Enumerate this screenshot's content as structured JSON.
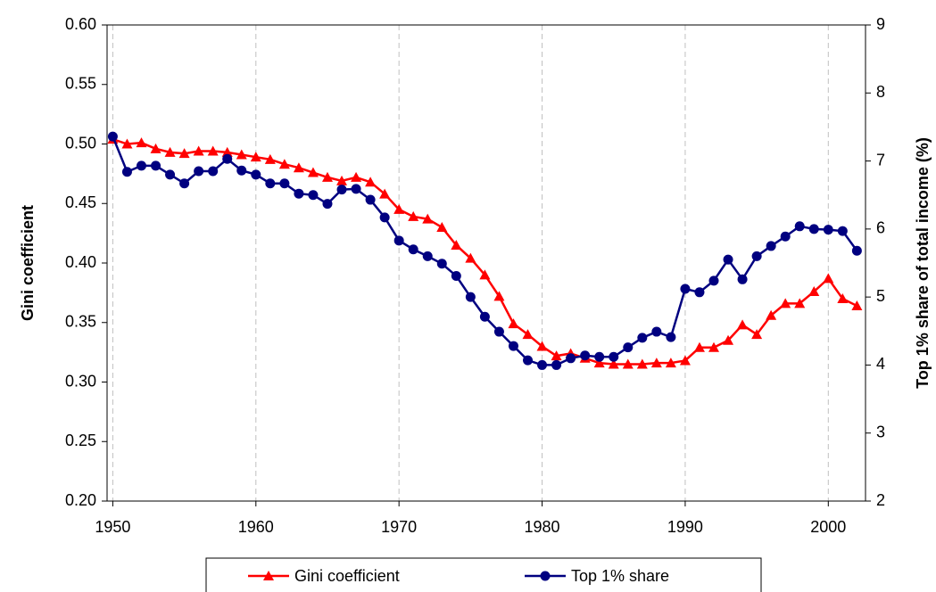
{
  "chart_data": {
    "type": "line",
    "x": [
      1950,
      1951,
      1952,
      1953,
      1954,
      1955,
      1956,
      1957,
      1958,
      1959,
      1960,
      1961,
      1962,
      1963,
      1964,
      1965,
      1966,
      1967,
      1968,
      1969,
      1970,
      1971,
      1972,
      1973,
      1974,
      1975,
      1976,
      1977,
      1978,
      1979,
      1980,
      1981,
      1982,
      1983,
      1984,
      1985,
      1986,
      1987,
      1988,
      1989,
      1990,
      1991,
      1992,
      1993,
      1994,
      1995,
      1996,
      1997,
      1998,
      1999,
      2000,
      2001,
      2002
    ],
    "series": [
      {
        "name": "Gini coefficient",
        "color": "#ff0000",
        "marker": "triangle",
        "values": [
          0.504,
          0.5,
          0.501,
          0.496,
          0.493,
          0.492,
          0.494,
          0.494,
          0.493,
          0.491,
          0.489,
          0.487,
          0.483,
          0.48,
          0.476,
          0.472,
          0.469,
          0.472,
          0.468,
          0.458,
          0.445,
          0.439,
          0.437,
          0.43,
          0.415,
          0.404,
          0.39,
          0.372,
          0.349,
          0.34,
          0.33,
          0.322,
          0.324,
          0.32,
          0.316,
          0.315,
          0.315,
          0.315,
          0.316,
          0.316,
          0.318,
          0.329,
          0.329,
          0.335,
          0.348,
          0.34,
          0.356,
          0.366,
          0.366,
          0.376,
          0.387,
          0.37,
          0.364
        ]
      },
      {
        "name": "Top 1% share",
        "color": "#000080",
        "marker": "circle",
        "axis": "y2",
        "values": [
          7.36,
          6.84,
          6.93,
          6.93,
          6.8,
          6.67,
          6.85,
          6.85,
          7.03,
          6.86,
          6.8,
          6.67,
          6.67,
          6.52,
          6.5,
          6.37,
          6.58,
          6.59,
          6.43,
          6.17,
          5.83,
          5.7,
          5.6,
          5.49,
          5.31,
          5.0,
          4.71,
          4.49,
          4.28,
          4.07,
          4.0,
          4.0,
          4.1,
          4.14,
          4.12,
          4.12,
          4.26,
          4.4,
          4.49,
          4.41,
          5.12,
          5.07,
          5.24,
          5.55,
          5.26,
          5.6,
          5.75,
          5.89,
          6.04,
          6.0,
          5.99,
          5.97,
          5.68
        ]
      }
    ],
    "y_label": "Gini coefficient",
    "y2_label": "Top 1% share of total income (%)",
    "xlim": [
      1949.6,
      2002.6
    ],
    "xticks": [
      1950,
      1960,
      1970,
      1980,
      1990,
      2000
    ],
    "ylim": [
      0.2,
      0.6
    ],
    "yticks": [
      {
        "value": 0.2,
        "label": "0.20"
      },
      {
        "value": 0.25,
        "label": "0.25"
      },
      {
        "value": 0.3,
        "label": "0.30"
      },
      {
        "value": 0.35,
        "label": "0.35"
      },
      {
        "value": 0.4,
        "label": "0.40"
      },
      {
        "value": 0.45,
        "label": "0.45"
      },
      {
        "value": 0.5,
        "label": "0.50"
      },
      {
        "value": 0.55,
        "label": "0.55"
      },
      {
        "value": 0.6,
        "label": "0.60"
      }
    ],
    "y2lim": [
      2,
      9
    ],
    "y2ticks": [
      2,
      3,
      4,
      5,
      6,
      7,
      8,
      9
    ],
    "grid": "x",
    "legend": "bottom"
  }
}
